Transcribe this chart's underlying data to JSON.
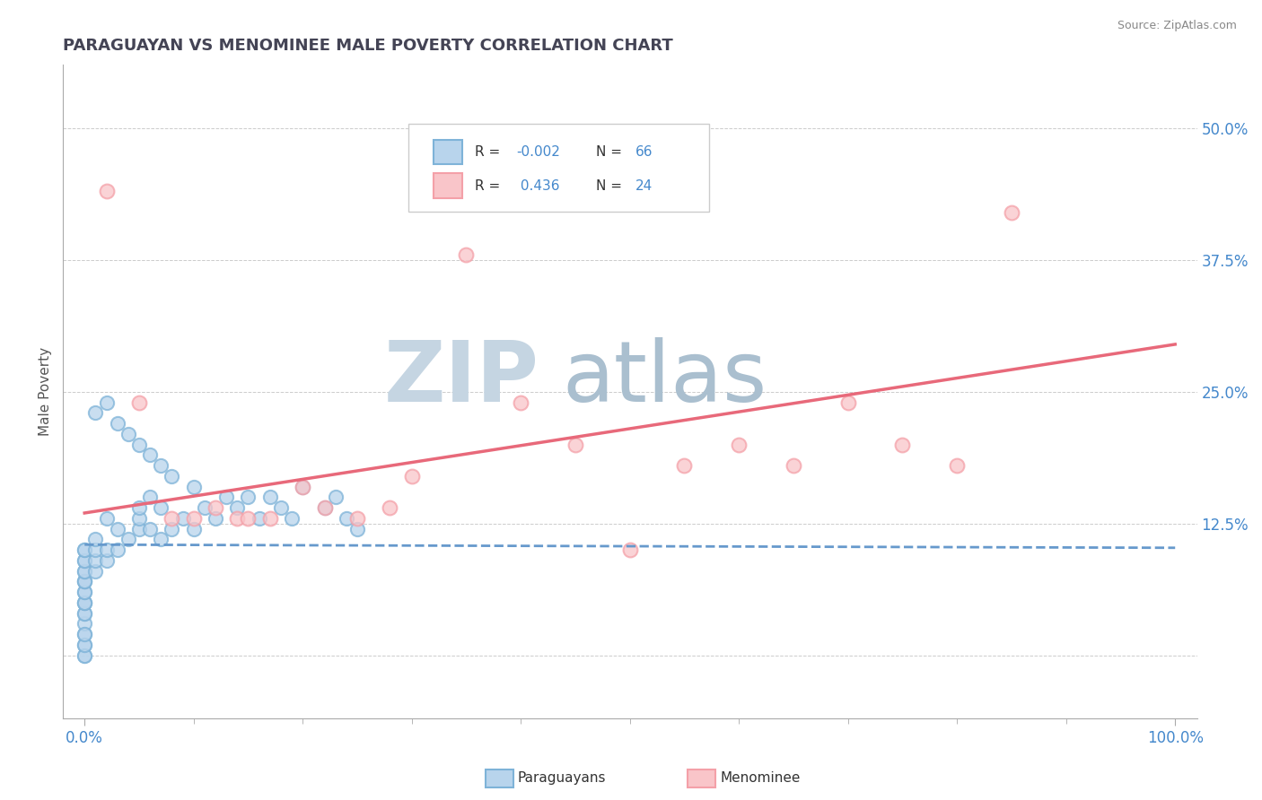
{
  "title": "PARAGUAYAN VS MENOMINEE MALE POVERTY CORRELATION CHART",
  "source": "Source: ZipAtlas.com",
  "ylabel": "Male Poverty",
  "y_ticks": [
    0.0,
    0.125,
    0.25,
    0.375,
    0.5
  ],
  "y_tick_labels": [
    "",
    "12.5%",
    "25.0%",
    "37.5%",
    "50.0%"
  ],
  "legend_paraguayans_R": "-0.002",
  "legend_paraguayans_N": "66",
  "legend_menominee_R": "0.436",
  "legend_menominee_N": "24",
  "blue_color": "#7EB3D8",
  "pink_color": "#F4A0A8",
  "blue_fill": "#B8D4EC",
  "pink_fill": "#F9C5C9",
  "blue_line_color": "#6699CC",
  "pink_line_color": "#E8697A",
  "title_color": "#444455",
  "source_color": "#888888",
  "axis_label_color": "#4488CC",
  "watermark_color_zip": "#C8D8E8",
  "watermark_color_atlas": "#AABBCC",
  "paraguayans_x": [
    0.0,
    0.0,
    0.0,
    0.0,
    0.0,
    0.0,
    0.0,
    0.0,
    0.0,
    0.0,
    0.0,
    0.0,
    0.0,
    0.0,
    0.0,
    0.0,
    0.0,
    0.0,
    0.0,
    0.0,
    0.01,
    0.01,
    0.01,
    0.01,
    0.02,
    0.02,
    0.02,
    0.03,
    0.03,
    0.04,
    0.05,
    0.05,
    0.05,
    0.06,
    0.06,
    0.07,
    0.07,
    0.08,
    0.08,
    0.09,
    0.1,
    0.1,
    0.11,
    0.12,
    0.13,
    0.14,
    0.15,
    0.16,
    0.17,
    0.18,
    0.19,
    0.2,
    0.22,
    0.23,
    0.24,
    0.25,
    0.04,
    0.05,
    0.06,
    0.07,
    0.02,
    0.03,
    0.01,
    0.0,
    0.0,
    0.0
  ],
  "paraguayans_y": [
    0.0,
    0.01,
    0.02,
    0.03,
    0.04,
    0.04,
    0.05,
    0.05,
    0.05,
    0.06,
    0.06,
    0.07,
    0.07,
    0.07,
    0.08,
    0.08,
    0.09,
    0.09,
    0.1,
    0.1,
    0.08,
    0.09,
    0.1,
    0.11,
    0.09,
    0.1,
    0.13,
    0.1,
    0.12,
    0.11,
    0.12,
    0.13,
    0.14,
    0.12,
    0.15,
    0.11,
    0.14,
    0.12,
    0.17,
    0.13,
    0.12,
    0.16,
    0.14,
    0.13,
    0.15,
    0.14,
    0.15,
    0.13,
    0.15,
    0.14,
    0.13,
    0.16,
    0.14,
    0.15,
    0.13,
    0.12,
    0.21,
    0.2,
    0.19,
    0.18,
    0.24,
    0.22,
    0.23,
    0.0,
    0.01,
    0.02
  ],
  "menominee_x": [
    0.02,
    0.05,
    0.08,
    0.1,
    0.12,
    0.14,
    0.15,
    0.17,
    0.2,
    0.22,
    0.25,
    0.28,
    0.3,
    0.35,
    0.4,
    0.45,
    0.5,
    0.55,
    0.6,
    0.65,
    0.7,
    0.75,
    0.8,
    0.85
  ],
  "menominee_y": [
    0.44,
    0.24,
    0.13,
    0.13,
    0.14,
    0.13,
    0.13,
    0.13,
    0.16,
    0.14,
    0.13,
    0.14,
    0.17,
    0.38,
    0.24,
    0.2,
    0.1,
    0.18,
    0.2,
    0.18,
    0.24,
    0.2,
    0.18,
    0.42
  ],
  "blue_trend_x": [
    0.0,
    1.0
  ],
  "blue_trend_y": [
    0.105,
    0.102
  ],
  "pink_trend_x": [
    0.0,
    1.0
  ],
  "pink_trend_y": [
    0.135,
    0.295
  ],
  "background_color": "#FFFFFF",
  "grid_color": "#CCCCCC",
  "xlim": [
    -0.02,
    1.02
  ],
  "ylim": [
    -0.06,
    0.56
  ]
}
